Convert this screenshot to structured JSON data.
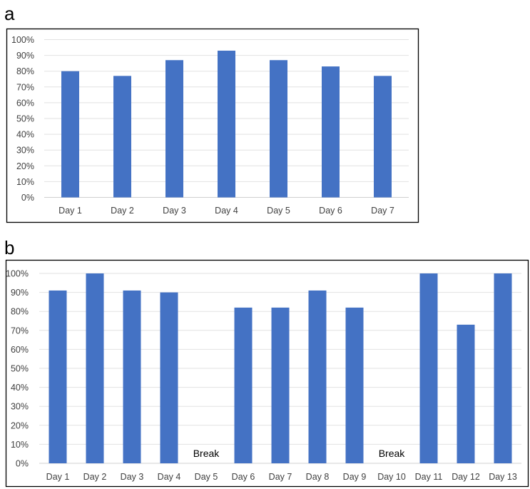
{
  "panels": {
    "a_label": "a",
    "b_label": "b"
  },
  "chart_data": [
    {
      "type": "bar",
      "panel": "a",
      "categories": [
        "Day 1",
        "Day 2",
        "Day 3",
        "Day 4",
        "Day 5",
        "Day 6",
        "Day 7"
      ],
      "values": [
        80,
        77,
        87,
        93,
        87,
        83,
        77
      ],
      "y_ticks": [
        "0%",
        "10%",
        "20%",
        "30%",
        "40%",
        "50%",
        "60%",
        "70%",
        "80%",
        "90%",
        "100%"
      ],
      "ylim": [
        0,
        100
      ],
      "grid": true,
      "bar_color": "#4472C4",
      "annotations": []
    },
    {
      "type": "bar",
      "panel": "b",
      "categories": [
        "Day 1",
        "Day 2",
        "Day 3",
        "Day 4",
        "Day 5",
        "Day 6",
        "Day 7",
        "Day 8",
        "Day 9",
        "Day 10",
        "Day 11",
        "Day 12",
        "Day 13"
      ],
      "values": [
        91,
        100,
        91,
        90,
        null,
        82,
        82,
        91,
        82,
        null,
        100,
        73,
        100
      ],
      "y_ticks": [
        "0%",
        "10%",
        "20%",
        "30%",
        "40%",
        "50%",
        "60%",
        "70%",
        "80%",
        "90%",
        "100%"
      ],
      "ylim": [
        0,
        100
      ],
      "grid": true,
      "bar_color": "#4472C4",
      "annotations": [
        {
          "category": "Day 5",
          "text": "Break"
        },
        {
          "category": "Day 10",
          "text": "Break"
        }
      ]
    }
  ]
}
